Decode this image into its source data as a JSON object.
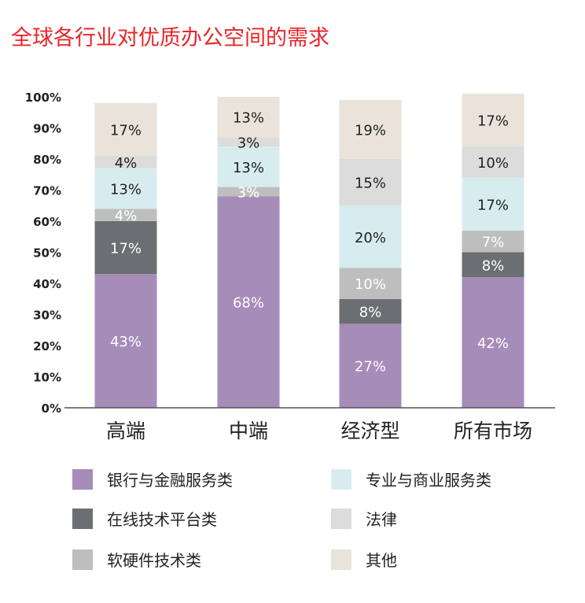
{
  "title": "全球各行业对优质办公空间的需求",
  "chart_data": {
    "type": "bar",
    "stacked": true,
    "ylim": [
      0,
      100
    ],
    "yticks": [
      "0%",
      "10%",
      "20%",
      "30%",
      "40%",
      "50%",
      "60%",
      "70%",
      "80%",
      "90%",
      "100%"
    ],
    "categories": [
      "高端",
      "中端",
      "经济型",
      "所有市场"
    ],
    "series": [
      {
        "name": "银行与金融服务类",
        "color": "#a68cb8",
        "values": [
          43,
          68,
          27,
          42
        ],
        "labels": [
          "43%",
          "68%",
          "27%",
          "42%"
        ],
        "label_color": "#ffffff"
      },
      {
        "name": "在线技术平台类",
        "color": "#6b6e72",
        "values": [
          17,
          0,
          8,
          8
        ],
        "labels": [
          "17%",
          "",
          "8%",
          "8%"
        ],
        "label_color": "#ffffff"
      },
      {
        "name": "软硬件技术类",
        "color": "#bebebe",
        "values": [
          4,
          3,
          10,
          7
        ],
        "labels": [
          "4%",
          "3%",
          "10%",
          "7%"
        ],
        "label_color": "#ffffff"
      },
      {
        "name": "专业与商业服务类",
        "color": "#d7ecef",
        "values": [
          13,
          13,
          20,
          17
        ],
        "labels": [
          "13%",
          "13%",
          "20%",
          "17%"
        ],
        "label_color": "#222222"
      },
      {
        "name": "法律",
        "color": "#dcdcdc",
        "values": [
          4,
          3,
          15,
          10
        ],
        "labels": [
          "4%",
          "3%",
          "15%",
          "10%"
        ],
        "label_color": "#222222"
      },
      {
        "name": "其他",
        "color": "#e9e3da",
        "values": [
          17,
          13,
          19,
          17
        ],
        "labels": [
          "17%",
          "13%",
          "19%",
          "17%"
        ],
        "label_color": "#222222"
      }
    ]
  },
  "legend": {
    "left": [
      {
        "label": "银行与金融服务类",
        "color": "#a68cb8"
      },
      {
        "label": "在线技术平台类",
        "color": "#6b6e72"
      },
      {
        "label": "软硬件技术类",
        "color": "#bebebe"
      }
    ],
    "right": [
      {
        "label": "专业与商业服务类",
        "color": "#d7ecef"
      },
      {
        "label": "法律",
        "color": "#dcdcdc"
      },
      {
        "label": "其他",
        "color": "#e9e3da"
      }
    ]
  }
}
